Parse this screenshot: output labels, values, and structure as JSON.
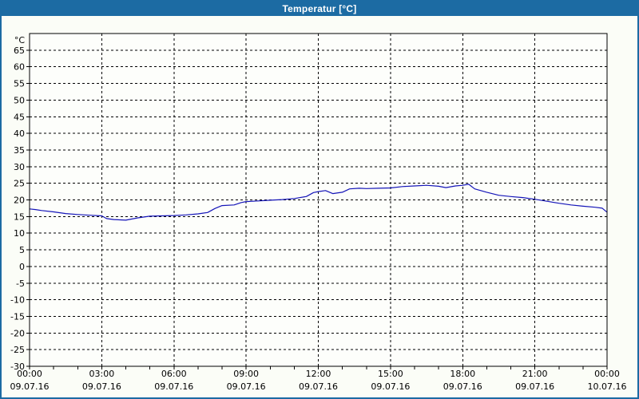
{
  "window": {
    "title": "Temperatur [°C]",
    "colors": {
      "titlebar": "#1c6ba3",
      "border": "#1c6ba3",
      "background": "#fbfdf7",
      "plot_background": "#fdfefb",
      "line": "#1414b8",
      "grid": "#000000",
      "text": "#000000",
      "title_text": "#ffffff"
    }
  },
  "chart_data": {
    "type": "line",
    "title": "Temperatur [°C]",
    "unit_label": "°C",
    "xlabel": "",
    "ylabel": "°C",
    "xlim": [
      0,
      24
    ],
    "ylim": [
      -30,
      70
    ],
    "grid": true,
    "grid_style": "dashed",
    "legend": "none",
    "y_ticks": [
      65,
      60,
      55,
      50,
      45,
      40,
      35,
      30,
      25,
      20,
      15,
      10,
      5,
      0,
      -5,
      -10,
      -15,
      -20,
      -25,
      -30
    ],
    "x_ticks": [
      {
        "hour": 0,
        "time": "00:00",
        "date": "09.07.16"
      },
      {
        "hour": 3,
        "time": "03:00",
        "date": "09.07.16"
      },
      {
        "hour": 6,
        "time": "06:00",
        "date": "09.07.16"
      },
      {
        "hour": 9,
        "time": "09:00",
        "date": "09.07.16"
      },
      {
        "hour": 12,
        "time": "12:00",
        "date": "09.07.16"
      },
      {
        "hour": 15,
        "time": "15:00",
        "date": "09.07.16"
      },
      {
        "hour": 18,
        "time": "18:00",
        "date": "09.07.16"
      },
      {
        "hour": 21,
        "time": "21:00",
        "date": "09.07.16"
      },
      {
        "hour": 24,
        "time": "00:00",
        "date": "10.07.16"
      }
    ],
    "x_minor_tick_interval_hours": 1,
    "series": [
      {
        "name": "Temperatur",
        "color": "#1414b8",
        "points": [
          [
            0,
            17.3
          ],
          [
            0.25,
            17.1
          ],
          [
            0.5,
            16.8
          ],
          [
            1,
            16.4
          ],
          [
            1.5,
            15.9
          ],
          [
            2,
            15.6
          ],
          [
            2.5,
            15.4
          ],
          [
            3,
            15.2
          ],
          [
            3.2,
            14.4
          ],
          [
            3.5,
            14.1
          ],
          [
            4,
            13.9
          ],
          [
            4.5,
            14.6
          ],
          [
            5,
            15.1
          ],
          [
            5.5,
            15.2
          ],
          [
            6,
            15.3
          ],
          [
            6.5,
            15.5
          ],
          [
            7,
            15.8
          ],
          [
            7.4,
            16.2
          ],
          [
            7.7,
            17.4
          ],
          [
            8,
            18.3
          ],
          [
            8.5,
            18.5
          ],
          [
            8.8,
            19.2
          ],
          [
            9,
            19.5
          ],
          [
            9.5,
            19.7
          ],
          [
            10,
            19.9
          ],
          [
            10.5,
            20.1
          ],
          [
            11,
            20.4
          ],
          [
            11.5,
            21.0
          ],
          [
            11.8,
            22.2
          ],
          [
            12,
            22.5
          ],
          [
            12.3,
            22.8
          ],
          [
            12.6,
            21.9
          ],
          [
            13,
            22.3
          ],
          [
            13.3,
            23.3
          ],
          [
            13.7,
            23.5
          ],
          [
            14,
            23.4
          ],
          [
            14.5,
            23.5
          ],
          [
            15,
            23.6
          ],
          [
            15.5,
            24.0
          ],
          [
            16,
            24.2
          ],
          [
            16.5,
            24.4
          ],
          [
            17,
            24.1
          ],
          [
            17.3,
            23.7
          ],
          [
            17.7,
            24.2
          ],
          [
            18,
            24.4
          ],
          [
            18.25,
            24.7
          ],
          [
            18.5,
            23.3
          ],
          [
            19,
            22.3
          ],
          [
            19.5,
            21.4
          ],
          [
            20,
            21.0
          ],
          [
            20.5,
            20.7
          ],
          [
            21,
            20.2
          ],
          [
            21.5,
            19.6
          ],
          [
            22,
            19.0
          ],
          [
            22.5,
            18.5
          ],
          [
            23,
            18.1
          ],
          [
            23.5,
            17.8
          ],
          [
            23.8,
            17.5
          ],
          [
            24,
            16.3
          ]
        ]
      }
    ]
  }
}
